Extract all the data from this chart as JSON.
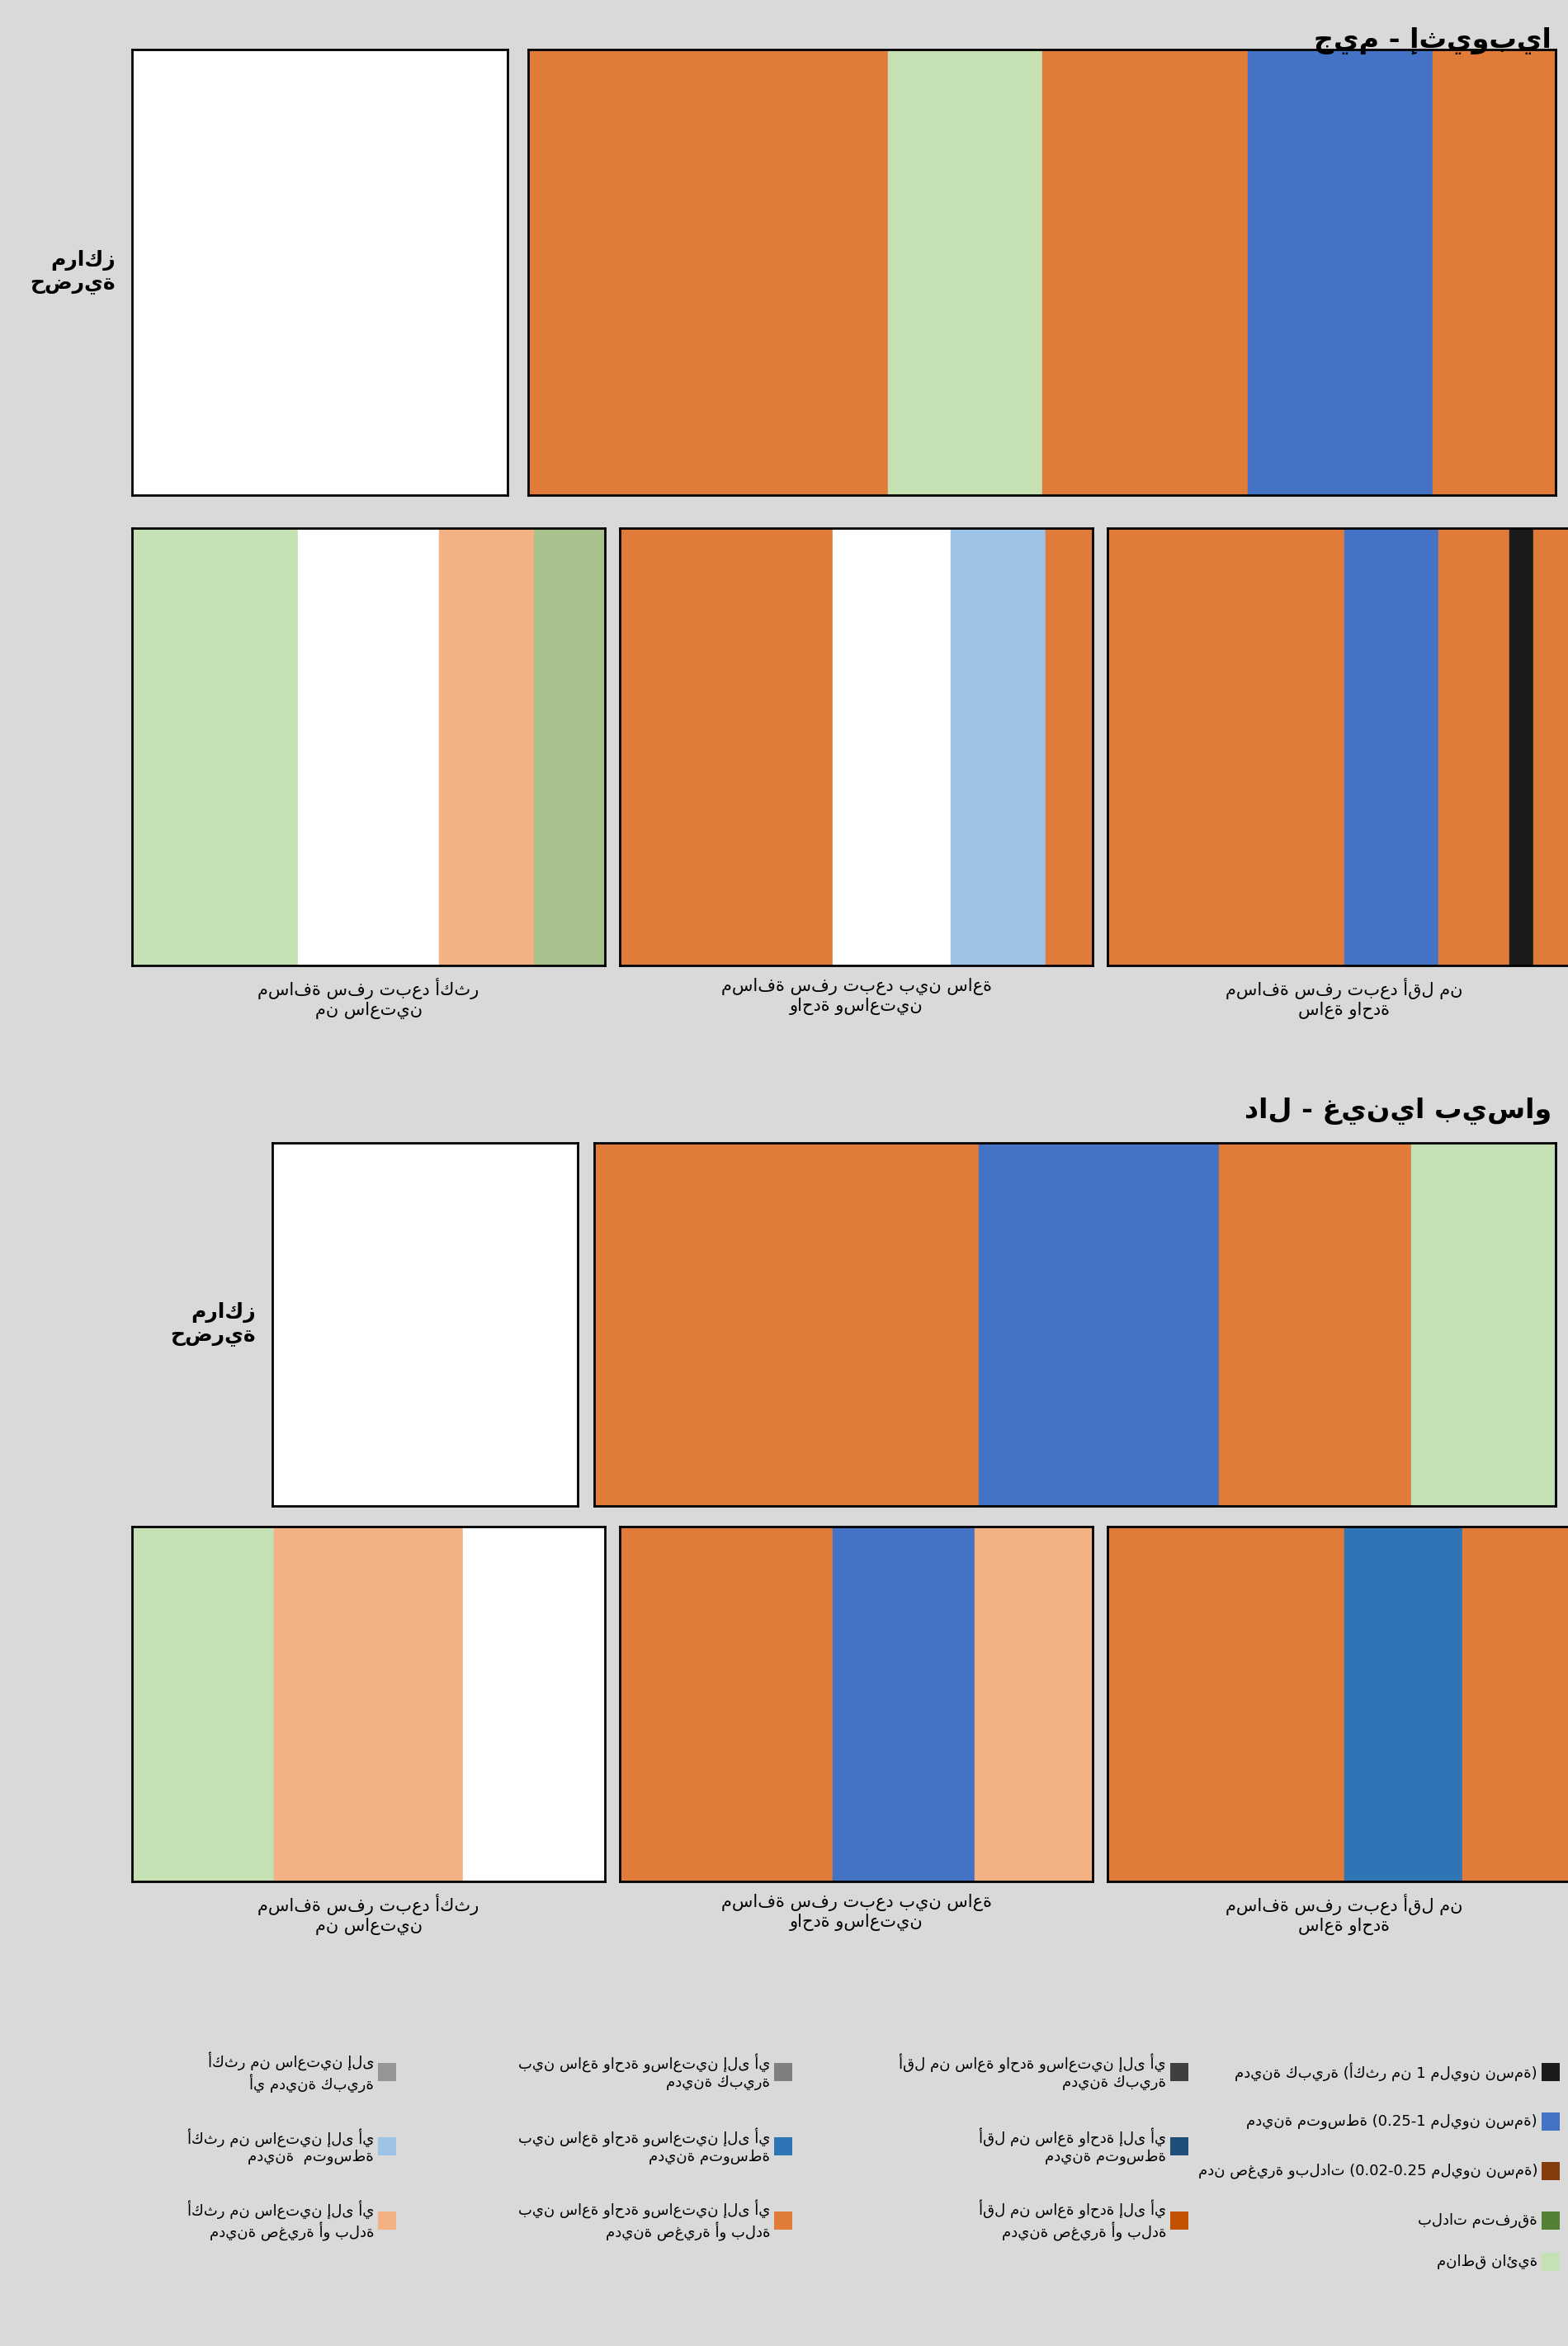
{
  "title_ethiopia": "جيم - إثيوبيا",
  "title_guinea": "دال - غينيا بيساو",
  "label_urban_centers": "مراكز\nحضرية",
  "label_less_1h_line1": "مسافة سفر تبعد أقل من",
  "label_less_1h_line2": "ساعة واحدة",
  "label_1_2h_line1": "مسافة سفر تبعد بين ساعة",
  "label_1_2h_line2": "واحدة وساعتين",
  "label_more_2h_line1": "مسافة سفر تبعد أكثر",
  "label_more_2h_line2": "من ساعتين",
  "bg_color": "#d9d9d9",
  "map_colors": {
    "orange": "#e07b39",
    "blue": "#4472c4",
    "green_light": "#c5e0b3",
    "green_mid": "#a9c18c",
    "white": "#ffffff",
    "dark": "#1a1a1a",
    "light_orange": "#f4b183",
    "light_blue": "#9dc3e6",
    "gray": "#969696",
    "brown": "#843c0c",
    "blue_dark": "#2e75b6",
    "blue_mid": "#5b9bd5",
    "teal": "#70ad47"
  },
  "legend_col4": {
    "title": "",
    "items": [
      [
        "مدينة كبيرة (أكثر من 1 مليون نسمة)",
        "#1a1a1a"
      ],
      [
        "مدينة متوسطة (0.25-1 مليون نسمة)",
        "#4472c4"
      ],
      [
        "مدن صغيرة وبلدات (0.02-0.25 مليون نسمة)",
        "#843c0c"
      ],
      [
        "بلدات متفرقة",
        "#538135"
      ],
      [
        "مناطق نائية",
        "#c5e0b3"
      ]
    ]
  },
  "legend_col3": {
    "items": [
      [
        "أقل من ساعة واحدة وساعتين إلى أي\nمدينة كبيرة",
        "#3f3f3f"
      ],
      [
        "أقل من ساعة واحدة إلى أي\nمدينة متوسطة",
        "#1f4e79"
      ],
      [
        "أقل من ساعة واحدة إلى أي\nمدينة صغيرة أو بلدة",
        "#c35200"
      ]
    ]
  },
  "legend_col2": {
    "items": [
      [
        "بين ساعة واحدة وساعتين إلى أي\nمدينة كبيرة",
        "#7f7f7f"
      ],
      [
        "بين ساعة واحدة وساعتين إلى أي\nمدينة متوسطة",
        "#2e75b6"
      ],
      [
        "بين ساعة واحدة وساعتين إلى أي\nمدينة صغيرة أو بلدة",
        "#e07b39"
      ]
    ]
  },
  "legend_col1": {
    "items": [
      [
        "أكثر من ساعتين إلى\nأي مدينة كبيرة",
        "#969696"
      ],
      [
        "أكثر من ساعتين إلى أي\nمدينة  متوسطة",
        "#9dc3e6"
      ],
      [
        "أكثر من ساعتين إلى أي\nمدينة صغيرة أو بلدة",
        "#f4b183"
      ]
    ]
  }
}
